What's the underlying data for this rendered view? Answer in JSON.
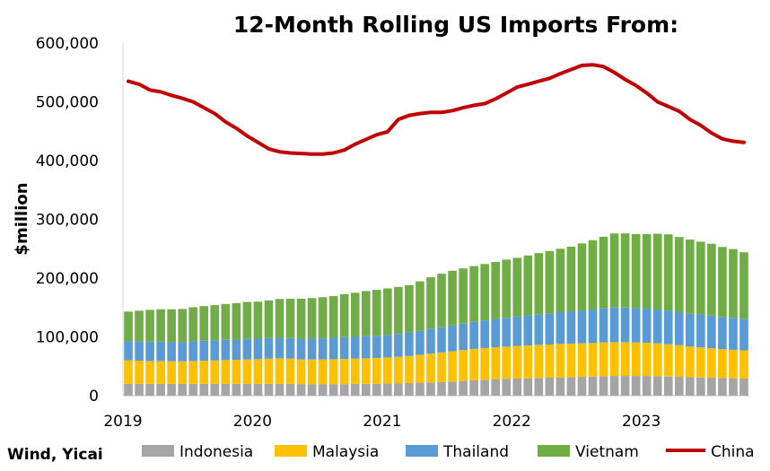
{
  "chart_data": {
    "type": "bar",
    "title": "12-Month Rolling US Imports From:",
    "ylabel": "$million",
    "source": "Wind, Yicai",
    "ylim": [
      0,
      600000
    ],
    "y_ticks": [
      "0",
      "100,000",
      "200,000",
      "300,000",
      "400,000",
      "500,000",
      "600,000"
    ],
    "y_tick_values": [
      0,
      100000,
      200000,
      300000,
      400000,
      500000,
      600000
    ],
    "x_ticks": [
      "2019",
      "2020",
      "2021",
      "2022",
      "2023"
    ],
    "legend_position": "bottom",
    "stacked": true,
    "x": [
      "2019-01",
      "2019-02",
      "2019-03",
      "2019-04",
      "2019-05",
      "2019-06",
      "2019-07",
      "2019-08",
      "2019-09",
      "2019-10",
      "2019-11",
      "2019-12",
      "2020-01",
      "2020-02",
      "2020-03",
      "2020-04",
      "2020-05",
      "2020-06",
      "2020-07",
      "2020-08",
      "2020-09",
      "2020-10",
      "2020-11",
      "2020-12",
      "2021-01",
      "2021-02",
      "2021-03",
      "2021-04",
      "2021-05",
      "2021-06",
      "2021-07",
      "2021-08",
      "2021-09",
      "2021-10",
      "2021-11",
      "2021-12",
      "2022-01",
      "2022-02",
      "2022-03",
      "2022-04",
      "2022-05",
      "2022-06",
      "2022-07",
      "2022-08",
      "2022-09",
      "2022-10",
      "2022-11",
      "2022-12",
      "2023-01",
      "2023-02",
      "2023-03",
      "2023-04",
      "2023-05",
      "2023-06",
      "2023-07",
      "2023-08",
      "2023-09",
      "2023-10"
    ],
    "series": [
      {
        "name": "Indonesia",
        "type": "bar",
        "color": "#a5a5a5",
        "values": [
          20000,
          20000,
          20000,
          20000,
          20000,
          20000,
          20000,
          20000,
          20000,
          20000,
          20000,
          20000,
          20000,
          20000,
          20000,
          20000,
          19500,
          19500,
          19500,
          19500,
          19500,
          20000,
          20000,
          20000,
          20500,
          21000,
          21500,
          22000,
          22500,
          23000,
          24000,
          25000,
          26000,
          27000,
          28000,
          28500,
          29000,
          29500,
          30000,
          30500,
          31000,
          31500,
          32000,
          32500,
          33000,
          33500,
          33500,
          33500,
          33500,
          33000,
          32500,
          32000,
          31500,
          31000,
          30500,
          30000,
          29500,
          29000
        ]
      },
      {
        "name": "Malaysia",
        "type": "bar",
        "color": "#ffc000",
        "values": [
          40000,
          39500,
          39000,
          39000,
          38500,
          38500,
          39000,
          39500,
          40000,
          40500,
          41000,
          41500,
          42000,
          43000,
          43500,
          43000,
          42000,
          42000,
          42000,
          42500,
          43000,
          43000,
          43500,
          44000,
          44500,
          45000,
          46000,
          47500,
          49000,
          50500,
          51500,
          52500,
          53500,
          54000,
          54500,
          55000,
          55500,
          56000,
          56500,
          56500,
          57000,
          57000,
          57000,
          57000,
          57500,
          57500,
          57500,
          57000,
          56500,
          56000,
          55000,
          54000,
          52000,
          51000,
          50000,
          49000,
          48500,
          48000
        ]
      },
      {
        "name": "Thailand",
        "type": "bar",
        "color": "#5b9bd5",
        "values": [
          33000,
          33000,
          33000,
          33000,
          33000,
          33000,
          33500,
          34000,
          34000,
          34500,
          34500,
          35000,
          35000,
          35000,
          35000,
          35000,
          35500,
          35500,
          36000,
          36500,
          37000,
          37000,
          37500,
          38000,
          38500,
          39000,
          40000,
          41000,
          42000,
          43000,
          44000,
          45000,
          46000,
          47000,
          48000,
          49000,
          50000,
          51000,
          52000,
          53000,
          54000,
          55000,
          56000,
          57000,
          58000,
          59000,
          59000,
          58500,
          58000,
          57500,
          57000,
          56000,
          56000,
          56000,
          56000,
          55000,
          54500,
          54000
        ]
      },
      {
        "name": "Vietnam",
        "type": "bar",
        "color": "#70ad47",
        "values": [
          50000,
          52000,
          54000,
          55000,
          55500,
          56000,
          58000,
          59000,
          60000,
          61000,
          62000,
          63000,
          63000,
          64000,
          66000,
          67000,
          68000,
          69000,
          70000,
          71000,
          73000,
          75000,
          77000,
          78000,
          79000,
          80000,
          80500,
          84000,
          88000,
          91000,
          93000,
          94000,
          95000,
          96000,
          97000,
          99000,
          100000,
          102000,
          104000,
          106000,
          108000,
          110000,
          114000,
          118000,
          122000,
          126000,
          126000,
          126000,
          127000,
          129000,
          130000,
          128000,
          126000,
          124000,
          122000,
          119000,
          117000,
          113000
        ]
      },
      {
        "name": "China",
        "type": "line",
        "color": "#c00000",
        "values": [
          535000,
          530000,
          520000,
          517000,
          511000,
          506000,
          500000,
          490000,
          480000,
          466000,
          455000,
          442000,
          431000,
          420000,
          415000,
          413000,
          412000,
          411000,
          411000,
          413000,
          418000,
          428000,
          436000,
          444000,
          449000,
          470000,
          477000,
          480000,
          482000,
          482000,
          485000,
          490000,
          494000,
          497000,
          505000,
          515000,
          525000,
          530000,
          535000,
          540000,
          548000,
          555000,
          562000,
          563000,
          560000,
          550000,
          538000,
          528000,
          515000,
          500000,
          492000,
          484000,
          470000,
          460000,
          447000,
          437000,
          433000,
          431000
        ]
      }
    ]
  }
}
